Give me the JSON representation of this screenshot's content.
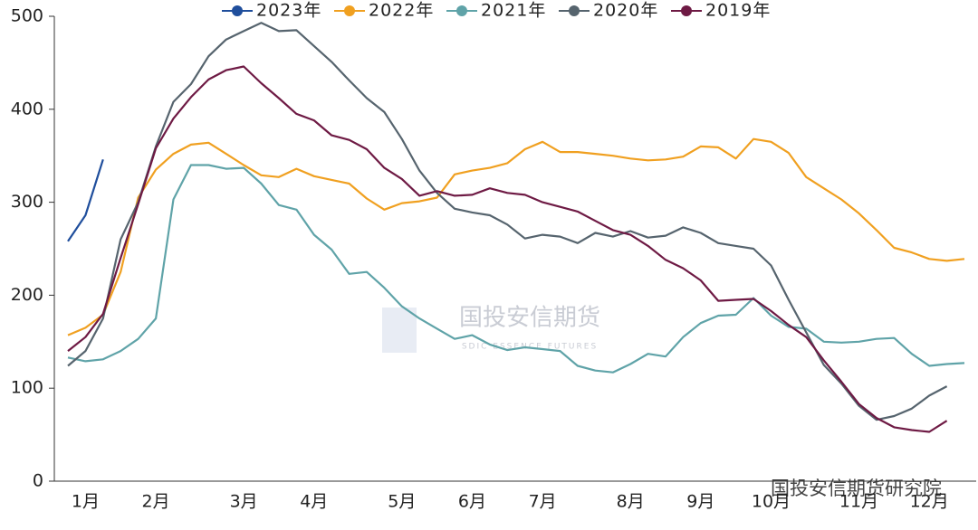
{
  "chart_data": {
    "type": "line",
    "categories": [
      null,
      "1月",
      null,
      null,
      null,
      "2月",
      null,
      null,
      null,
      null,
      "3月",
      null,
      null,
      null,
      "4月",
      null,
      null,
      null,
      null,
      "5月",
      null,
      null,
      null,
      "6月",
      null,
      null,
      null,
      "7月",
      null,
      null,
      null,
      null,
      "8月",
      null,
      null,
      null,
      "9月",
      null,
      null,
      null,
      "10月",
      null,
      null,
      null,
      null,
      "11月",
      null,
      null,
      null,
      "12月",
      null,
      null
    ],
    "series": [
      {
        "name": "2023年",
        "color": "#1f4e9c",
        "values": [
          258,
          286,
          346,
          null,
          null,
          null,
          null,
          null,
          null,
          null,
          null,
          null,
          null,
          null,
          null,
          null,
          null,
          null,
          null,
          null,
          null,
          null,
          null,
          null,
          null,
          null,
          null,
          null,
          null,
          null,
          null,
          null,
          null,
          null,
          null,
          null,
          null,
          null,
          null,
          null,
          null,
          null,
          null,
          null,
          null,
          null,
          null,
          null,
          null,
          null,
          null,
          null
        ]
      },
      {
        "name": "2022年",
        "color": "#f0a020",
        "values": [
          157,
          165,
          179,
          225,
          305,
          335,
          352,
          362,
          364,
          352,
          340,
          329,
          327,
          336,
          328,
          324,
          320,
          304,
          292,
          299,
          301,
          305,
          330,
          334,
          337,
          342,
          357,
          365,
          354,
          354,
          352,
          350,
          347,
          345,
          346,
          349,
          360,
          359,
          347,
          368,
          365,
          353,
          327,
          315,
          303,
          288,
          270,
          251,
          246,
          239,
          237,
          239
        ]
      },
      {
        "name": "2021年",
        "color": "#5fa3a8",
        "values": [
          133,
          129,
          131,
          140,
          153,
          175,
          303,
          340,
          340,
          336,
          337,
          320,
          297,
          292,
          265,
          249,
          223,
          225,
          208,
          188,
          175,
          164,
          153,
          157,
          147,
          141,
          144,
          142,
          140,
          124,
          119,
          117,
          126,
          137,
          134,
          155,
          170,
          178,
          179,
          197,
          178,
          166,
          164,
          150,
          149,
          150,
          153,
          154,
          137,
          124,
          126,
          127
        ]
      },
      {
        "name": "2020年",
        "color": "#56646e",
        "values": [
          124,
          140,
          175,
          260,
          300,
          360,
          408,
          427,
          457,
          475,
          484,
          493,
          484,
          485,
          468,
          451,
          431,
          412,
          397,
          368,
          334,
          310,
          293,
          289,
          286,
          276,
          261,
          265,
          263,
          256,
          267,
          263,
          269,
          262,
          264,
          273,
          267,
          256,
          253,
          250,
          232,
          195,
          160,
          125,
          105,
          81,
          66,
          70,
          78,
          92,
          102,
          null
        ]
      },
      {
        "name": "2019年",
        "color": "#6e1a44",
        "values": [
          140,
          155,
          180,
          240,
          298,
          358,
          390,
          413,
          432,
          442,
          446,
          428,
          412,
          395,
          388,
          372,
          367,
          357,
          337,
          325,
          307,
          312,
          307,
          308,
          315,
          310,
          308,
          300,
          295,
          290,
          280,
          270,
          265,
          253,
          238,
          229,
          216,
          194,
          195,
          196,
          183,
          168,
          155,
          130,
          107,
          83,
          68,
          58,
          55,
          53,
          65,
          null
        ]
      }
    ],
    "ylim": [
      0,
      500
    ],
    "yticks": [
      0,
      100,
      200,
      300,
      400,
      500
    ],
    "grid": false
  },
  "watermark": {
    "logo": "国投安信期货",
    "logo_en": "SDIC ESSENCE FUTURES",
    "account": "国投安信期货研究院"
  }
}
